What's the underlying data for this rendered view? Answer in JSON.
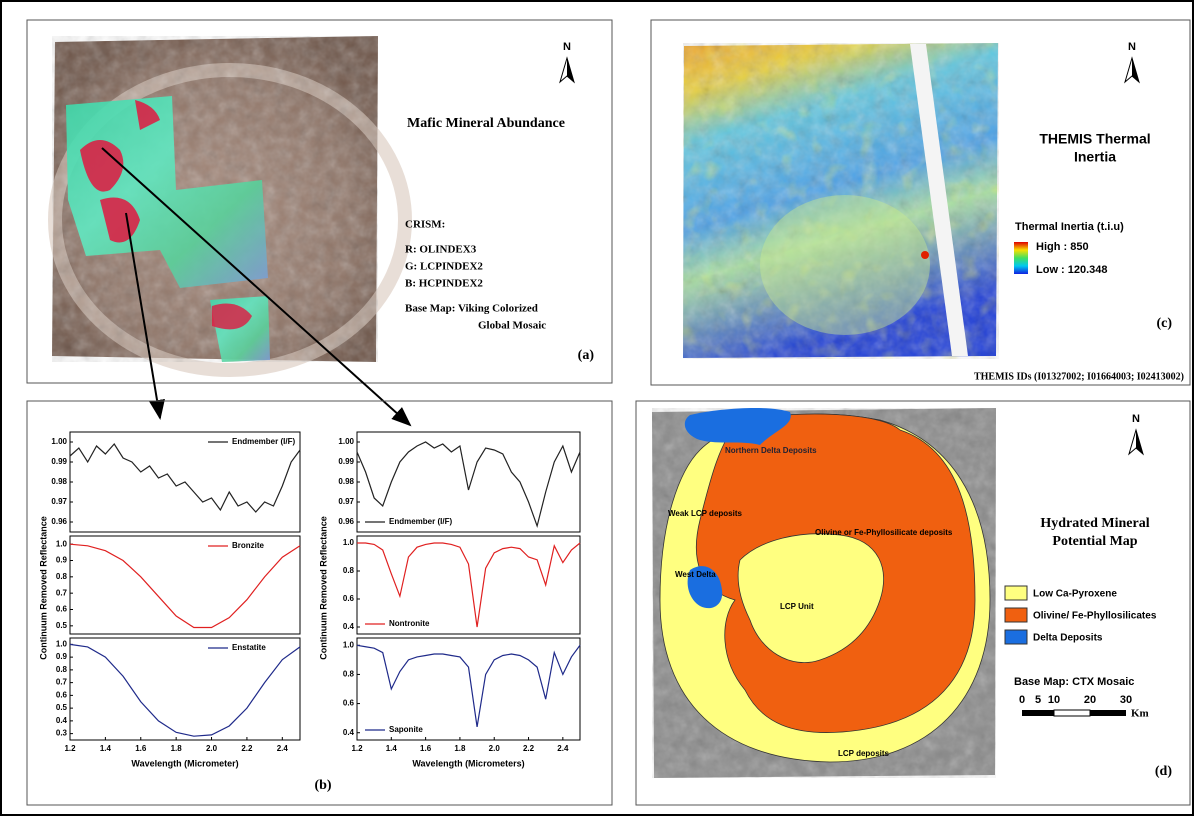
{
  "panels": {
    "a": {
      "title": "Mafic Mineral Abundance",
      "heading": "CRISM:",
      "bands": [
        "R: OLINDEX3",
        "G: LCPINDEX2",
        "B: HCPINDEX2"
      ],
      "base_map": [
        "Base Map: Viking Colorized",
        "Global Mosaic"
      ],
      "label": "(a)",
      "north": "N"
    },
    "b": {
      "ylabels": [
        "Continuum Removed Reflectance",
        "Continuum Removed Reflectance"
      ],
      "label": "(b)"
    },
    "c": {
      "title": [
        "THEMIS Thermal",
        "Inertia"
      ],
      "legend_title": "Thermal Inertia (t.i.u)",
      "high": "High : 850",
      "low": "Low : 120.348",
      "ids": "THEMIS IDs (I01327002; I01664003; I02413002)",
      "label": "(c)",
      "north": "N"
    },
    "d": {
      "title": [
        "Hydrated Mineral",
        "Potential Map"
      ],
      "map_labels": [
        "Northern Delta Deposits",
        "Weak LCP deposits",
        "Olivine or Fe-Phyllosilicate deposits",
        "West Delta",
        "LCP Unit",
        "LCP deposits"
      ],
      "legend": [
        "Low Ca-Pyroxene",
        "Olivine/ Fe-Phyllosilicates",
        "Delta Deposits"
      ],
      "base_map": "Base Map: CTX Mosaic",
      "scale": [
        0,
        5,
        10,
        20,
        30
      ],
      "scale_unit": "Km",
      "label": "(d)",
      "north": "N"
    }
  },
  "chart_data": [
    {
      "type": "line",
      "x": [
        1.2,
        1.25,
        1.3,
        1.35,
        1.4,
        1.45,
        1.5,
        1.55,
        1.6,
        1.65,
        1.7,
        1.75,
        1.8,
        1.85,
        1.9,
        1.95,
        2.0,
        2.05,
        2.1,
        2.15,
        2.2,
        2.25,
        2.3,
        2.35,
        2.4,
        2.45,
        2.5
      ],
      "series": [
        {
          "name": "Endmember (I/F)",
          "color": "#222222",
          "values": [
            0.993,
            0.997,
            0.99,
            0.998,
            0.994,
            0.999,
            0.992,
            0.99,
            0.985,
            0.988,
            0.982,
            0.984,
            0.978,
            0.98,
            0.975,
            0.97,
            0.972,
            0.966,
            0.975,
            0.968,
            0.97,
            0.965,
            0.97,
            0.968,
            0.978,
            0.99,
            0.996
          ]
        }
      ],
      "xlim": [
        1.2,
        2.5
      ],
      "ylim": [
        0.955,
        1.005
      ],
      "yticks": [
        {
          "value": 1,
          "label": "1.00"
        },
        0.99,
        0.98,
        0.97,
        0.96
      ],
      "legend": "upper right"
    },
    {
      "type": "line",
      "x": [
        1.2,
        1.3,
        1.4,
        1.5,
        1.6,
        1.7,
        1.8,
        1.9,
        2.0,
        2.1,
        2.2,
        2.3,
        2.4,
        2.5
      ],
      "series": [
        {
          "name": "Bronzite",
          "color": "#e02020",
          "values": [
            1.0,
            0.99,
            0.96,
            0.9,
            0.8,
            0.68,
            0.56,
            0.49,
            0.49,
            0.55,
            0.66,
            0.8,
            0.92,
            0.99
          ]
        }
      ],
      "xlim": [
        1.2,
        2.5
      ],
      "ylim": [
        0.45,
        1.05
      ],
      "yticks": [
        {
          "value": 1,
          "label": "1.0"
        },
        0.9,
        0.8,
        0.7,
        0.6,
        0.5
      ],
      "legend": "upper right"
    },
    {
      "type": "line",
      "x": [
        1.2,
        1.3,
        1.4,
        1.5,
        1.6,
        1.7,
        1.8,
        1.9,
        2.0,
        2.1,
        2.2,
        2.3,
        2.4,
        2.5
      ],
      "series": [
        {
          "name": "Enstatite",
          "color": "#1f2a8a",
          "values": [
            1.0,
            0.98,
            0.9,
            0.75,
            0.55,
            0.4,
            0.31,
            0.28,
            0.29,
            0.36,
            0.5,
            0.7,
            0.88,
            0.98
          ]
        }
      ],
      "xlim": [
        1.2,
        2.5
      ],
      "ylim": [
        0.25,
        1.05
      ],
      "yticks": [
        {
          "value": 1,
          "label": "1.0"
        },
        0.9,
        0.8,
        0.7,
        0.6,
        0.5,
        0.4,
        0.3
      ],
      "xticks": [
        1.2,
        1.4,
        1.6,
        1.8,
        {
          "value": 2,
          "label": "2.0"
        },
        2.2,
        2.4
      ],
      "xlabel": "Wavelength (Micrometer)",
      "legend": "upper right"
    },
    {
      "type": "line",
      "x": [
        1.2,
        1.25,
        1.3,
        1.35,
        1.4,
        1.45,
        1.5,
        1.55,
        1.6,
        1.65,
        1.7,
        1.75,
        1.8,
        1.85,
        1.9,
        1.95,
        2.0,
        2.05,
        2.1,
        2.15,
        2.2,
        2.25,
        2.3,
        2.35,
        2.4,
        2.45,
        2.5
      ],
      "series": [
        {
          "name": "Endmember (I/F)",
          "color": "#222222",
          "values": [
            0.995,
            0.985,
            0.972,
            0.968,
            0.98,
            0.99,
            0.995,
            0.998,
            1.0,
            0.997,
            0.999,
            0.995,
            0.998,
            0.976,
            0.99,
            0.997,
            0.996,
            0.994,
            0.985,
            0.98,
            0.97,
            0.958,
            0.975,
            0.99,
            0.998,
            0.985,
            0.995
          ]
        }
      ],
      "xlim": [
        1.2,
        2.5
      ],
      "ylim": [
        0.955,
        1.005
      ],
      "yticks": [
        {
          "value": 1,
          "label": "1.00"
        },
        0.99,
        0.98,
        0.97,
        0.96
      ],
      "legend": "lower left"
    },
    {
      "type": "line",
      "x": [
        1.2,
        1.25,
        1.3,
        1.35,
        1.4,
        1.45,
        1.5,
        1.55,
        1.6,
        1.65,
        1.7,
        1.75,
        1.8,
        1.85,
        1.9,
        1.95,
        2.0,
        2.05,
        2.1,
        2.15,
        2.2,
        2.25,
        2.3,
        2.35,
        2.4,
        2.45,
        2.5
      ],
      "series": [
        {
          "name": "Nontronite",
          "color": "#e02020",
          "values": [
            1.0,
            1.0,
            0.99,
            0.95,
            0.78,
            0.62,
            0.9,
            0.97,
            0.99,
            1.0,
            1.0,
            0.99,
            0.97,
            0.85,
            0.4,
            0.82,
            0.93,
            0.96,
            0.97,
            0.96,
            0.9,
            0.88,
            0.7,
            0.98,
            0.86,
            0.95,
            1.0
          ]
        }
      ],
      "xlim": [
        1.2,
        2.5
      ],
      "ylim": [
        0.35,
        1.05
      ],
      "yticks": [
        {
          "value": 1,
          "label": "1.0"
        },
        0.8,
        0.6,
        0.4
      ],
      "legend": "lower left"
    },
    {
      "type": "line",
      "x": [
        1.2,
        1.25,
        1.3,
        1.35,
        1.4,
        1.45,
        1.5,
        1.55,
        1.6,
        1.65,
        1.7,
        1.75,
        1.8,
        1.85,
        1.9,
        1.95,
        2.0,
        2.05,
        2.1,
        2.15,
        2.2,
        2.25,
        2.3,
        2.35,
        2.4,
        2.45,
        2.5
      ],
      "series": [
        {
          "name": "Saponite",
          "color": "#1f2a8a",
          "values": [
            1.0,
            0.99,
            0.98,
            0.95,
            0.7,
            0.82,
            0.9,
            0.92,
            0.93,
            0.94,
            0.94,
            0.93,
            0.92,
            0.85,
            0.44,
            0.8,
            0.9,
            0.93,
            0.94,
            0.93,
            0.9,
            0.85,
            0.63,
            0.95,
            0.8,
            0.92,
            1.0
          ]
        }
      ],
      "xlim": [
        1.2,
        2.5
      ],
      "ylim": [
        0.35,
        1.05
      ],
      "yticks": [
        {
          "value": 1,
          "label": "1.0"
        },
        0.8,
        0.6,
        0.4
      ],
      "xticks": [
        1.2,
        1.4,
        1.6,
        1.8,
        {
          "value": 2,
          "label": "2.0"
        },
        2.2,
        2.4
      ],
      "xlabel": "Wavelength (Micrometers)",
      "legend": "lower left"
    }
  ]
}
